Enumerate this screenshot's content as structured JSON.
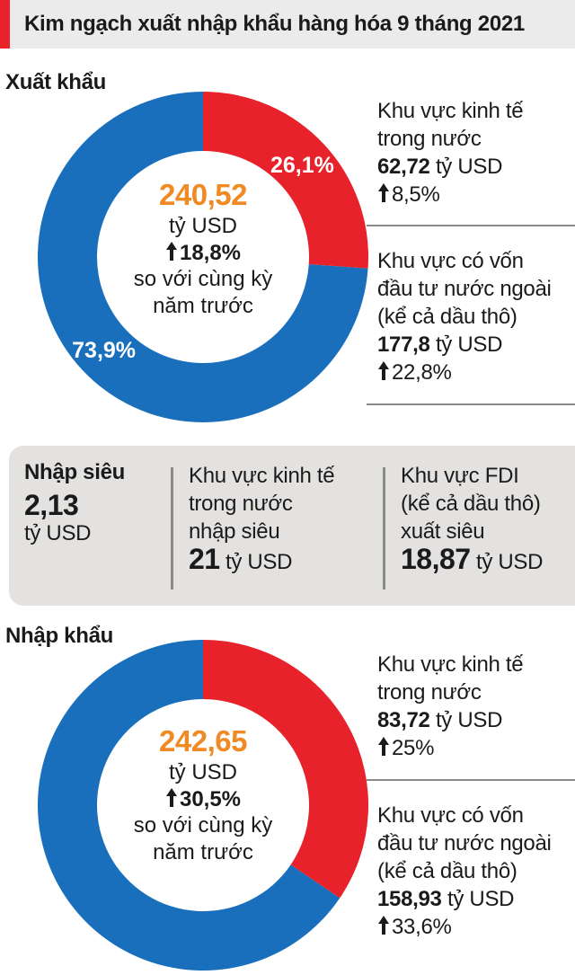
{
  "title": "Kim ngạch xuất nhập khẩu hàng hóa 9 tháng 2021",
  "colors": {
    "accent_red": "#e8222b",
    "blue": "#1a6fbd",
    "orange": "#f08a24",
    "panel_gray": "#e4e2e0"
  },
  "export": {
    "label": "Xuất khẩu",
    "total": "240,52",
    "unit": "tỷ USD",
    "change": "18,8%",
    "note_line1": "so với cùng kỳ",
    "note_line2": "năm trước",
    "domestic": {
      "line1": "Khu vực kinh tế",
      "line2": "trong nước",
      "value": "62,72",
      "unit": "tỷ USD",
      "change": "8,5%"
    },
    "fdi": {
      "line1": "Khu vực có vốn",
      "line2": "đầu tư nước ngoài",
      "line3": "(kể cả dầu thô)",
      "value": "177,8",
      "unit": "tỷ USD",
      "change": "22,8%"
    }
  },
  "deficit": {
    "label": "Nhập siêu",
    "value": "2,13",
    "unit": "tỷ USD",
    "domestic": {
      "line1": "Khu vực kinh tế",
      "line2": "trong nước",
      "line3": "nhập siêu",
      "value": "21",
      "unit": "tỷ USD"
    },
    "fdi": {
      "line1": "Khu vực FDI",
      "line2": "(kể cả dầu thô)",
      "line3": "xuất siêu",
      "value": "18,87",
      "unit": "tỷ USD"
    }
  },
  "import": {
    "label": "Nhập khẩu",
    "total": "242,65",
    "unit": "tỷ USD",
    "change": "30,5%",
    "note_line1": "so với cùng kỳ",
    "note_line2": "năm trước",
    "domestic": {
      "line1": "Khu vực kinh tế",
      "line2": "trong nước",
      "value": "83,72",
      "unit": "tỷ USD",
      "change": "25%"
    },
    "fdi": {
      "line1": "Khu vực có vốn",
      "line2": "đầu tư nước ngoài",
      "line3": "(kể cả dầu thô)",
      "value": "158,93",
      "unit": "tỷ USD",
      "change": "33,6%"
    }
  },
  "chart_data": [
    {
      "type": "pie",
      "title": "Xuất khẩu",
      "categories": [
        "Khu vực kinh tế trong nước",
        "Khu vực có vốn đầu tư nước ngoài (kể cả dầu thô)"
      ],
      "values": [
        26.1,
        73.9
      ],
      "data_labels": [
        "26,1%",
        "73,9%"
      ],
      "absolute_values": [
        62.72,
        177.8
      ],
      "colors": [
        "#e8222b",
        "#1a6fbd"
      ]
    },
    {
      "type": "pie",
      "title": "Nhập khẩu",
      "categories": [
        "Khu vực kinh tế trong nước",
        "Khu vực có vốn đầu tư nước ngoài (kể cả dầu thô)"
      ],
      "values": [
        34.5,
        65.5
      ],
      "data_labels": [],
      "absolute_values": [
        83.72,
        158.93
      ],
      "colors": [
        "#e8222b",
        "#1a6fbd"
      ]
    }
  ]
}
